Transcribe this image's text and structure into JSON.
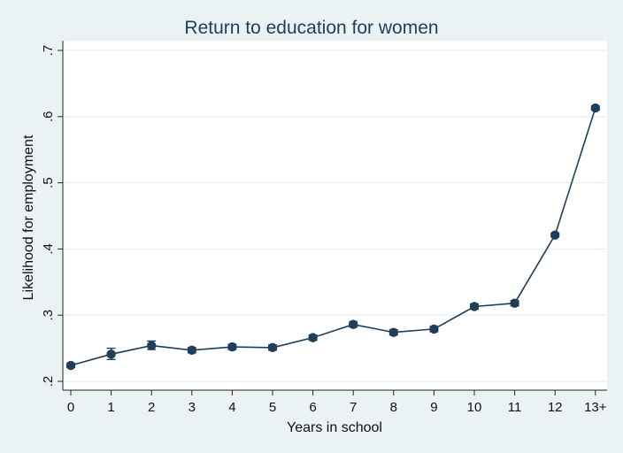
{
  "chart_data": {
    "type": "line",
    "title": "Return to education for women",
    "xlabel": "Years in school",
    "ylabel": "Likelihood for employment",
    "categories": [
      "0",
      "1",
      "2",
      "3",
      "4",
      "5",
      "6",
      "7",
      "8",
      "9",
      "10",
      "11",
      "12",
      "13+"
    ],
    "yticks": [
      ".2",
      ".3",
      ".4",
      ".5",
      ".6",
      ".7"
    ],
    "ylim": [
      0.2,
      0.7
    ],
    "grid": true,
    "series": [
      {
        "values": [
          0.224,
          0.241,
          0.254,
          0.247,
          0.252,
          0.251,
          0.266,
          0.286,
          0.274,
          0.279,
          0.313,
          0.318,
          0.421,
          0.613
        ],
        "ci_low": [
          0.221,
          0.233,
          0.248,
          0.243,
          0.248,
          0.247,
          0.262,
          0.282,
          0.27,
          0.275,
          0.309,
          0.314,
          0.418,
          0.61
        ],
        "ci_high": [
          0.227,
          0.25,
          0.261,
          0.251,
          0.256,
          0.255,
          0.27,
          0.29,
          0.278,
          0.283,
          0.317,
          0.322,
          0.424,
          0.616
        ]
      }
    ],
    "colors": {
      "series": "#1f3e5a",
      "background": "#eaf2f3",
      "plot_area": "#ffffff"
    }
  }
}
